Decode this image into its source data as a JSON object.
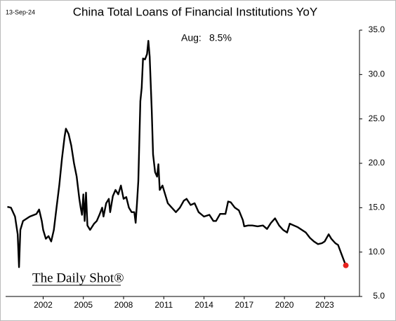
{
  "chart_data": {
    "type": "line",
    "title": "China Total Loans of Financial Institutions YoY",
    "date": "13-Sep-24",
    "source": "The Daily Shot®",
    "annotation": [
      "Aug:",
      "8.5%"
    ],
    "color": "#000000",
    "marker_color": "#e8231f",
    "x": [
      1999.33,
      1999.6,
      1999.9,
      2000.1,
      2000.2,
      2000.3,
      2000.5,
      2001.0,
      2001.5,
      2001.7,
      2001.9,
      2002.0,
      2002.2,
      2002.4,
      2002.6,
      2002.8,
      2003.0,
      2003.2,
      2003.4,
      2003.6,
      2003.7,
      2003.9,
      2004.1,
      2004.3,
      2004.5,
      2004.7,
      2004.8,
      2004.9,
      2005.0,
      2005.1,
      2005.2,
      2005.3,
      2005.5,
      2005.8,
      2006.0,
      2006.2,
      2006.4,
      2006.5,
      2006.7,
      2006.9,
      2007.0,
      2007.2,
      2007.4,
      2007.6,
      2007.8,
      2008.0,
      2008.2,
      2008.4,
      2008.6,
      2008.8,
      2008.9,
      2009.0,
      2009.1,
      2009.25,
      2009.35,
      2009.45,
      2009.6,
      2009.75,
      2009.85,
      2009.95,
      2010.1,
      2010.2,
      2010.35,
      2010.5,
      2010.6,
      2010.7,
      2010.9,
      2011.1,
      2011.3,
      2011.6,
      2011.9,
      2012.2,
      2012.5,
      2012.7,
      2013.0,
      2013.3,
      2013.6,
      2014.0,
      2014.4,
      2014.7,
      2014.9,
      2015.2,
      2015.6,
      2015.8,
      2016.0,
      2016.3,
      2016.6,
      2016.9,
      2017.0,
      2017.3,
      2017.6,
      2018.0,
      2018.4,
      2018.7,
      2019.0,
      2019.3,
      2019.6,
      2019.9,
      2020.2,
      2020.4,
      2020.7,
      2021.0,
      2021.3,
      2021.6,
      2021.9,
      2022.2,
      2022.5,
      2022.8,
      2023.0,
      2023.3,
      2023.5,
      2023.8,
      2024.0,
      2024.2,
      2024.4,
      2024.58
    ],
    "values": [
      15.1,
      15.0,
      14.0,
      12.0,
      8.3,
      12.5,
      13.5,
      14.0,
      14.3,
      14.8,
      13.5,
      12.5,
      11.5,
      11.8,
      11.2,
      12.5,
      15.0,
      17.5,
      20.5,
      23.0,
      23.9,
      23.3,
      22.0,
      20.0,
      18.5,
      16.0,
      15.0,
      14.2,
      16.5,
      13.5,
      16.7,
      13.0,
      12.5,
      13.2,
      13.5,
      14.2,
      15.0,
      14.0,
      15.5,
      16.0,
      14.5,
      16.3,
      17.0,
      16.5,
      17.5,
      16.0,
      16.2,
      15.0,
      14.5,
      14.5,
      13.3,
      15.5,
      18.0,
      27.0,
      28.5,
      31.8,
      31.7,
      32.3,
      33.8,
      32.0,
      26.0,
      21.0,
      19.0,
      18.5,
      19.9,
      17.0,
      17.5,
      16.5,
      15.5,
      15.0,
      14.5,
      15.0,
      15.8,
      16.0,
      15.3,
      15.5,
      14.5,
      14.0,
      14.2,
      13.5,
      13.5,
      14.3,
      14.3,
      15.7,
      15.6,
      15.0,
      14.7,
      13.6,
      12.9,
      13.0,
      13.0,
      12.9,
      13.0,
      12.6,
      13.3,
      13.8,
      13.0,
      12.5,
      12.2,
      13.2,
      13.0,
      12.8,
      12.5,
      12.2,
      11.6,
      11.2,
      10.9,
      11.0,
      11.2,
      12.0,
      11.5,
      11.0,
      10.8,
      10.0,
      9.2,
      8.5
    ],
    "xlim": [
      1999.2,
      2025.6
    ],
    "xticks": [
      2002,
      2005,
      2008,
      2011,
      2014,
      2017,
      2020,
      2023
    ],
    "ylim": [
      5,
      35
    ],
    "yticks": [
      {
        "value": 5,
        "label": "5.0"
      },
      {
        "value": 10,
        "label": "10.0"
      },
      {
        "value": 15,
        "label": "15.0"
      },
      {
        "value": 20,
        "label": "20.0"
      },
      {
        "value": 25,
        "label": "25.0"
      },
      {
        "value": 30,
        "label": "30.0"
      },
      {
        "value": 35,
        "label": "35.0"
      }
    ]
  }
}
